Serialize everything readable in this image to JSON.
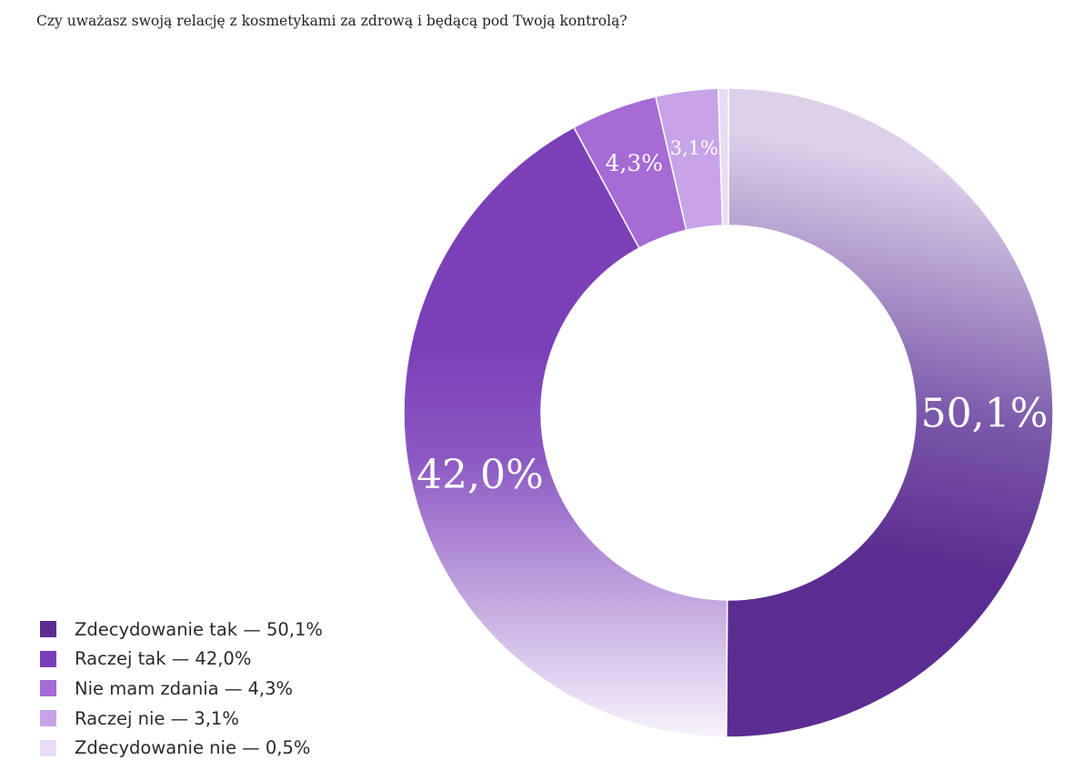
{
  "chart_data": {
    "type": "pie",
    "title": "Czy uważasz swoją relację z kosmetykami za zdrową i będącą pod Twoją kontrolą?",
    "donut": true,
    "categories": [
      "Zdecydowanie tak",
      "Raczej tak",
      "Nie mam zdania",
      "Raczej nie",
      "Zdecydowanie nie"
    ],
    "values": [
      50.1,
      42.0,
      4.3,
      3.1,
      0.5
    ],
    "data_labels": [
      "50,1%",
      "42,0%",
      "4,3%",
      "3,1%",
      ""
    ],
    "legend": {
      "position": "bottom-left",
      "entries": [
        "Zdecydowanie tak — 50,1%",
        "Raczej tak — 42,0%",
        "Nie mam zdania — 4,3%",
        "Raczej nie — 3,1%",
        "Zdecydowanie nie — 0,5%"
      ]
    },
    "colors": [
      "#5c2d91",
      "#7b40b8",
      "#a66bd4",
      "#c7a3e8",
      "#e9dcf6"
    ]
  }
}
